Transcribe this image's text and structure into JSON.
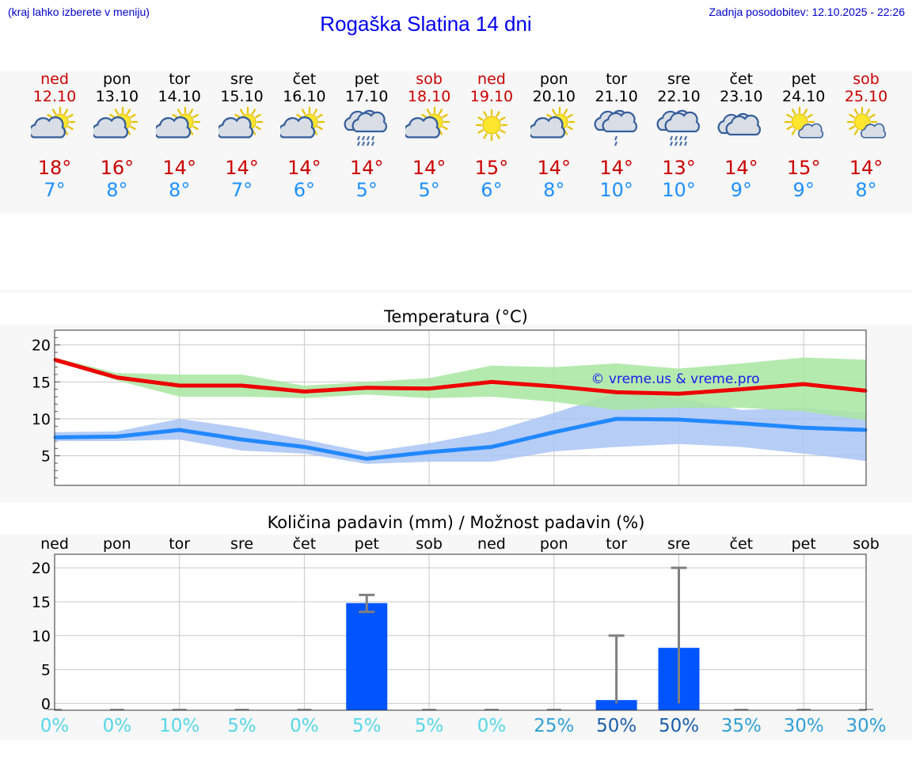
{
  "header": {
    "hint": "(kraj lahko izberete v meniju)",
    "title": "Rogaška Slatina 14 dni",
    "updated": "Zadnja posodobitev: 12.10.2025 - 22:26"
  },
  "days": [
    {
      "name": "ned",
      "date": "12.10",
      "weekend": true,
      "icon": "partly-sunny-icon",
      "tmax": "18°",
      "tmin": "7°"
    },
    {
      "name": "pon",
      "date": "13.10",
      "weekend": false,
      "icon": "partly-sunny-icon",
      "tmax": "16°",
      "tmin": "8°"
    },
    {
      "name": "tor",
      "date": "14.10",
      "weekend": false,
      "icon": "partly-sunny-icon",
      "tmax": "14°",
      "tmin": "8°"
    },
    {
      "name": "sre",
      "date": "15.10",
      "weekend": false,
      "icon": "partly-sunny-icon",
      "tmax": "14°",
      "tmin": "7°"
    },
    {
      "name": "čet",
      "date": "16.10",
      "weekend": false,
      "icon": "partly-sunny-icon",
      "tmax": "14°",
      "tmin": "6°"
    },
    {
      "name": "pet",
      "date": "17.10",
      "weekend": false,
      "icon": "rain-cloud-icon",
      "tmax": "14°",
      "tmin": "5°"
    },
    {
      "name": "sob",
      "date": "18.10",
      "weekend": true,
      "icon": "partly-sunny-icon",
      "tmax": "14°",
      "tmin": "5°"
    },
    {
      "name": "ned",
      "date": "19.10",
      "weekend": true,
      "icon": "sun-icon",
      "tmax": "15°",
      "tmin": "6°"
    },
    {
      "name": "pon",
      "date": "20.10",
      "weekend": false,
      "icon": "partly-sunny-icon",
      "tmax": "14°",
      "tmin": "8°"
    },
    {
      "name": "tor",
      "date": "21.10",
      "weekend": false,
      "icon": "light-rain-cloud-icon",
      "tmax": "14°",
      "tmin": "10°"
    },
    {
      "name": "sre",
      "date": "22.10",
      "weekend": false,
      "icon": "rain-cloud-icon",
      "tmax": "13°",
      "tmin": "10°"
    },
    {
      "name": "čet",
      "date": "23.10",
      "weekend": false,
      "icon": "cloud-icon",
      "tmax": "14°",
      "tmin": "9°"
    },
    {
      "name": "pet",
      "date": "24.10",
      "weekend": false,
      "icon": "sun-small-cloud-icon",
      "tmax": "15°",
      "tmin": "9°"
    },
    {
      "name": "sob",
      "date": "25.10",
      "weekend": true,
      "icon": "sun-small-cloud-icon",
      "tmax": "14°",
      "tmin": "8°"
    }
  ],
  "colors": {
    "max_line": "#ee0000",
    "max_band": "#a8e6a0",
    "min_line": "#2288ff",
    "min_band": "#a9c4f5",
    "bar": "#0055ff",
    "errorbar": "#808080"
  },
  "chart_data": [
    {
      "type": "line",
      "title": "Temperatura (°C)",
      "watermark": "© vreme.us & vreme.pro",
      "x": [
        "12.10",
        "13.10",
        "14.10",
        "15.10",
        "16.10",
        "17.10",
        "18.10",
        "19.10",
        "20.10",
        "21.10",
        "22.10",
        "23.10",
        "24.10",
        "25.10"
      ],
      "ylim": [
        1,
        22
      ],
      "yticks": [
        5,
        10,
        15,
        20
      ],
      "grid": true,
      "series": [
        {
          "role": "max",
          "values": [
            18,
            15.6,
            14.5,
            14.5,
            13.7,
            14.2,
            14.1,
            15,
            14.4,
            13.6,
            13.4,
            14,
            14.7,
            13.8
          ],
          "band_low": [
            17.8,
            15.2,
            13,
            13,
            12.8,
            13.3,
            12.8,
            13,
            12.3,
            11.2,
            11.5,
            11.5,
            11,
            9.8
          ],
          "band_high": [
            18.3,
            16.2,
            16,
            16,
            14.5,
            15,
            15.5,
            17.2,
            17,
            17.5,
            16.8,
            17.5,
            18.3,
            18
          ]
        },
        {
          "role": "min",
          "values": [
            7.5,
            7.6,
            8.5,
            7.2,
            6.2,
            4.6,
            5.5,
            6.2,
            8.2,
            10,
            9.9,
            9.4,
            8.8,
            8.5
          ],
          "band_low": [
            7,
            7,
            7.2,
            5.7,
            5.3,
            3.9,
            4.2,
            4.2,
            5.6,
            6.2,
            6.6,
            6.2,
            5.3,
            4.3
          ],
          "band_high": [
            8.2,
            8.3,
            10,
            8.8,
            7.2,
            5.5,
            6.7,
            8.3,
            10.8,
            13.5,
            12.8,
            11.2,
            11.5,
            10.8
          ]
        }
      ]
    },
    {
      "type": "bar",
      "title": "Količina padavin (mm) / Možnost padavin (%)",
      "categories": [
        "ned",
        "pon",
        "tor",
        "sre",
        "čet",
        "pet",
        "sob",
        "ned",
        "pon",
        "tor",
        "sre",
        "čet",
        "pet",
        "sob"
      ],
      "ylim": [
        -1,
        22
      ],
      "yticks": [
        0,
        5,
        10,
        15,
        20
      ],
      "values": [
        0,
        0,
        0,
        0,
        0,
        14.8,
        0,
        0,
        0,
        0.5,
        8.2,
        0,
        0,
        0
      ],
      "err_low": [
        0,
        0,
        0,
        0,
        0,
        13.5,
        0,
        0,
        0,
        0,
        0,
        0,
        0,
        0
      ],
      "err_high": [
        0,
        0,
        0,
        0,
        0,
        16,
        0,
        0,
        0,
        10,
        20,
        0,
        0,
        0
      ],
      "probability": [
        "0%",
        "0%",
        "10%",
        "5%",
        "0%",
        "5%",
        "5%",
        "0%",
        "25%",
        "50%",
        "50%",
        "35%",
        "30%",
        "30%"
      ],
      "probability_colors": [
        "#55d6e8",
        "#55d6e8",
        "#55d6e8",
        "#55d6e8",
        "#55d6e8",
        "#55d6e8",
        "#55d6e8",
        "#55d6e8",
        "#2ea0d8",
        "#1a5ea8",
        "#1a5ea8",
        "#2ea0d8",
        "#2ea0d8",
        "#2ea0d8"
      ]
    }
  ]
}
